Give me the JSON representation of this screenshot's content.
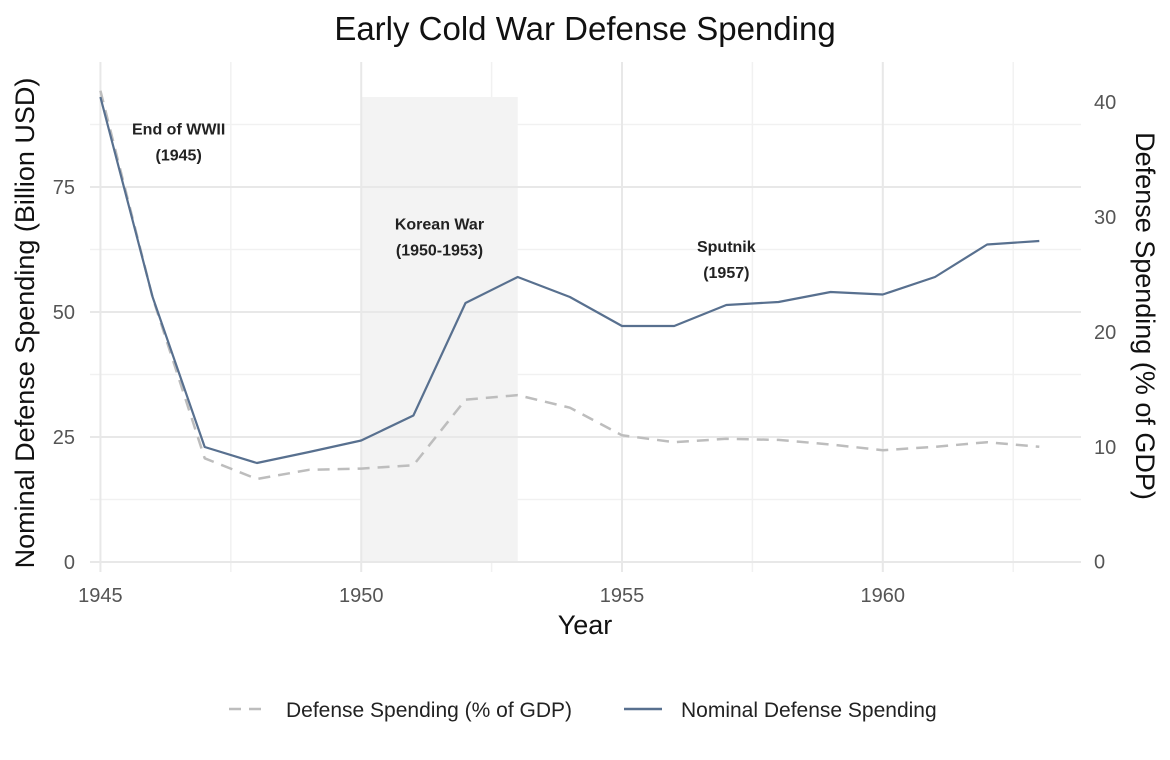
{
  "chart_data": {
    "type": "line",
    "title": "Early Cold War Defense Spending",
    "xlabel": "Year",
    "ylabel_left": "Nominal Defense Spending (Billion USD)",
    "ylabel_right": "Defense Spending (% of GDP)",
    "xlim": [
      1944.8,
      1963.8
    ],
    "ylim_left": [
      -2,
      100
    ],
    "ylim_right": [
      -0.9,
      43.5
    ],
    "x_ticks": [
      1945,
      1950,
      1955,
      1960
    ],
    "y_ticks_left": [
      0,
      25,
      50,
      75
    ],
    "y_ticks_right": [
      0,
      10,
      20,
      30,
      40
    ],
    "grid": true,
    "legend_position": "bottom",
    "shaded_regions": [
      {
        "x_start": 1950,
        "x_end": 1953,
        "y_left_top": 93
      }
    ],
    "annotations": [
      {
        "lines": [
          "End of WWII",
          "(1945)"
        ],
        "x": 1946.5,
        "y_left": 85.5
      },
      {
        "lines": [
          "Korean War",
          "(1950-1953)"
        ],
        "x": 1951.5,
        "y_left": 66.5
      },
      {
        "lines": [
          "Sputnik",
          "(1957)"
        ],
        "x": 1957,
        "y_left": 62
      }
    ],
    "x": [
      1945,
      1946,
      1947,
      1948,
      1949,
      1950,
      1951,
      1952,
      1953,
      1954,
      1955,
      1956,
      1957,
      1958,
      1959,
      1960,
      1961,
      1962,
      1963
    ],
    "series": [
      {
        "name": "Defense Spending (% of GDP)",
        "axis": "right",
        "style": "dashed",
        "color": "#bdbdbd",
        "values": [
          41.0,
          23.0,
          9.0,
          7.2,
          8.0,
          8.1,
          8.4,
          14.1,
          14.5,
          13.4,
          11.0,
          10.4,
          10.7,
          10.6,
          10.2,
          9.7,
          10.0,
          10.4,
          10.0
        ]
      },
      {
        "name": "Nominal Defense Spending",
        "axis": "left",
        "style": "solid",
        "color": "#58708f",
        "values": [
          93,
          53,
          23,
          19.8,
          22,
          24.3,
          29.3,
          51.8,
          57,
          53,
          47.2,
          47.2,
          51.4,
          52,
          54,
          53.5,
          57,
          63.5,
          64.2
        ]
      }
    ]
  }
}
